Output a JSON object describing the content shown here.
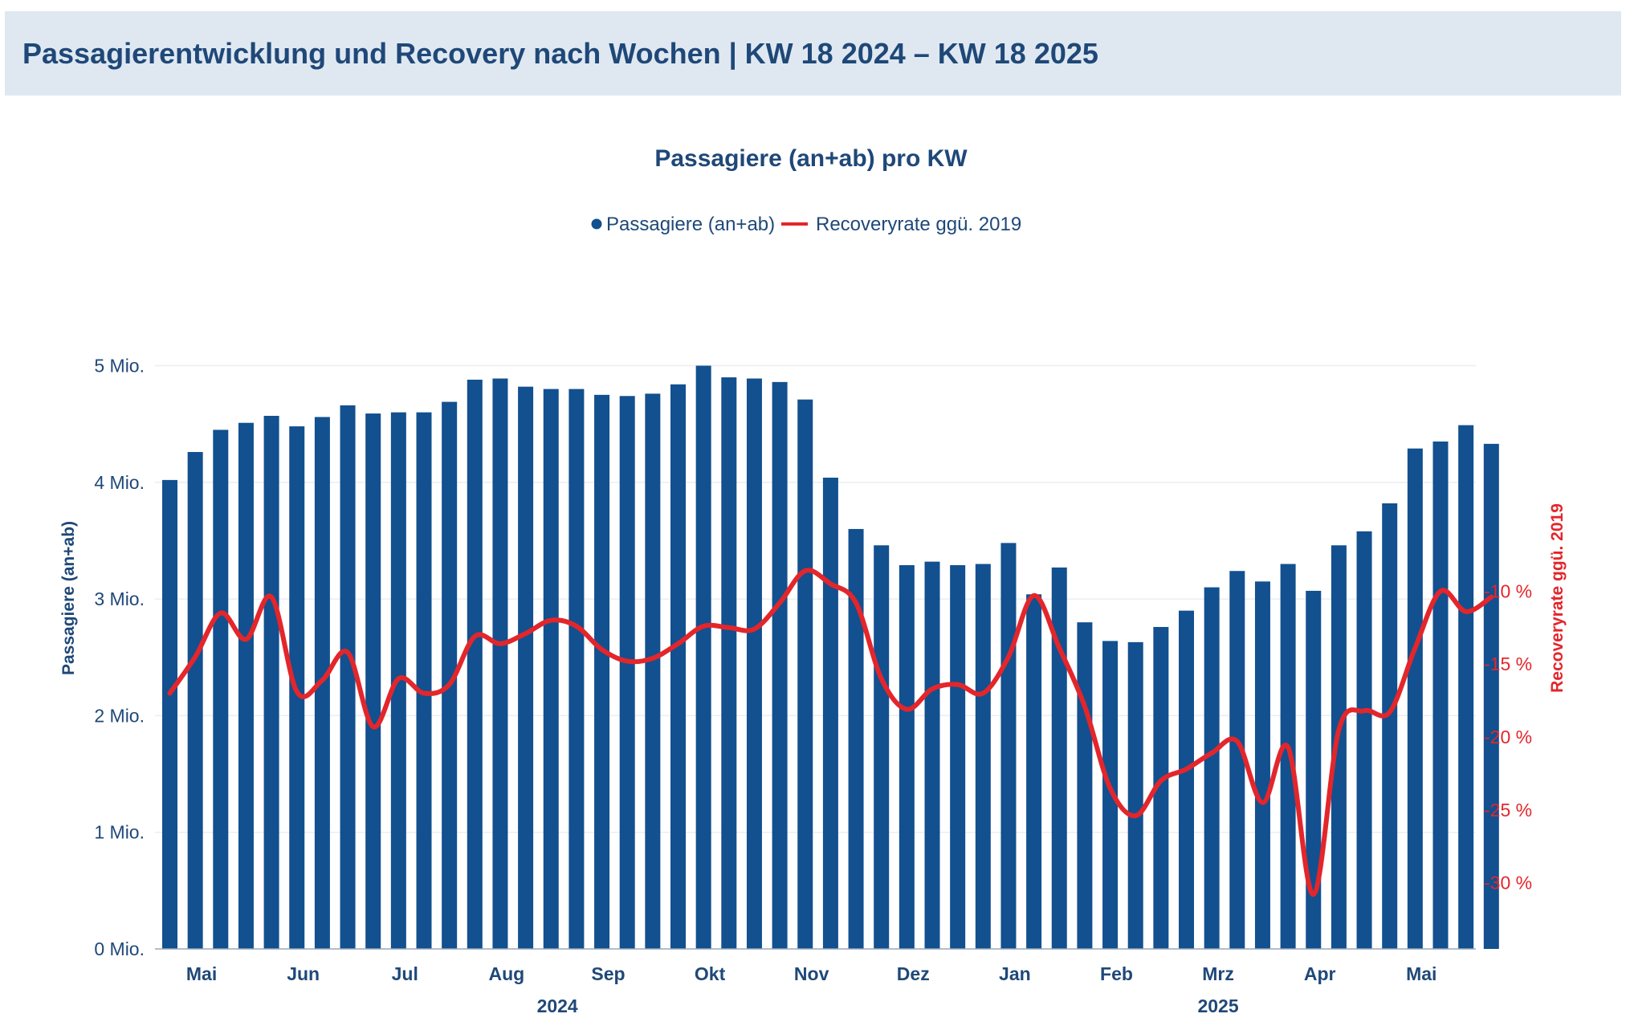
{
  "header": {
    "title": "Passagierentwicklung und Recovery nach Wochen | KW 18 2024 – KW 18 2025"
  },
  "colors": {
    "bars": "#12508f",
    "line": "#e3262b",
    "text": "#1f4878",
    "header_bg": "#dfe8f1"
  },
  "chart_data": {
    "type": "bar",
    "title": "Passagiere (an+ab) pro KW",
    "legend": {
      "position": "top-center",
      "items": [
        "Passagiere (an+ab)",
        "Recoveryrate ggü. 2019"
      ]
    },
    "ylabel": "Passagiere (an+ab)",
    "y2label": "Recoveryrate ggü. 2019",
    "ylim": [
      0,
      5.5
    ],
    "y2lim": [
      -32,
      -8
    ],
    "yticks": [
      "0 Mio.",
      "1 Mio.",
      "2 Mio.",
      "3 Mio.",
      "4 Mio.",
      "5 Mio."
    ],
    "y2ticks": [
      "-30 %",
      "-25 %",
      "-20 %",
      "-15 %",
      "-10 %"
    ],
    "grid": true,
    "month_labels": [
      "Mai",
      "Jun",
      "Jul",
      "Aug",
      "Sep",
      "Okt",
      "Nov",
      "Dez",
      "Jan",
      "Feb",
      "Mrz",
      "Apr",
      "Mai"
    ],
    "month_positions": [
      1.25,
      5.25,
      9.25,
      13.25,
      17.25,
      21.25,
      25.25,
      29.25,
      33.25,
      37.25,
      41.25,
      45.25,
      49.25
    ],
    "year_labels": [
      "2024",
      "2025"
    ],
    "year_positions": [
      15.25,
      41.25
    ],
    "series": [
      {
        "name": "Passagiere (an+ab)",
        "kind": "bar",
        "axis": "left",
        "unit": "Mio.",
        "values": [
          4.02,
          4.26,
          4.45,
          4.51,
          4.57,
          4.48,
          4.56,
          4.66,
          4.59,
          4.6,
          4.6,
          4.69,
          4.88,
          4.89,
          4.82,
          4.8,
          4.8,
          4.75,
          4.74,
          4.76,
          4.84,
          5.0,
          4.9,
          4.89,
          4.86,
          4.71,
          4.04,
          3.6,
          3.46,
          3.29,
          3.32,
          3.29,
          3.3,
          3.48,
          3.04,
          3.27,
          2.8,
          2.64,
          2.63,
          2.76,
          2.9,
          3.1,
          3.24,
          3.15,
          3.3,
          3.07,
          3.46,
          3.58,
          3.82,
          4.29,
          4.35,
          4.49,
          4.33
        ]
      },
      {
        "name": "Recoveryrate ggü. 2019",
        "kind": "line",
        "axis": "right",
        "unit": "%",
        "values": [
          -17.0,
          -14.5,
          -11.5,
          -13.3,
          -10.4,
          -16.9,
          -16.1,
          -14.2,
          -19.3,
          -16.0,
          -17.0,
          -16.4,
          -13.1,
          -13.6,
          -12.9,
          -12.0,
          -12.4,
          -14.0,
          -14.8,
          -14.6,
          -13.6,
          -12.4,
          -12.5,
          -12.6,
          -10.8,
          -8.6,
          -9.5,
          -10.8,
          -16.0,
          -18.1,
          -16.7,
          -16.4,
          -17.0,
          -14.5,
          -10.3,
          -13.9,
          -17.9,
          -23.5,
          -25.4,
          -23.0,
          -22.2,
          -21.1,
          -20.3,
          -24.5,
          -20.7,
          -30.8,
          -19.5,
          -18.2,
          -18.3,
          -13.9,
          -10.0,
          -11.4,
          -10.4
        ]
      }
    ]
  }
}
